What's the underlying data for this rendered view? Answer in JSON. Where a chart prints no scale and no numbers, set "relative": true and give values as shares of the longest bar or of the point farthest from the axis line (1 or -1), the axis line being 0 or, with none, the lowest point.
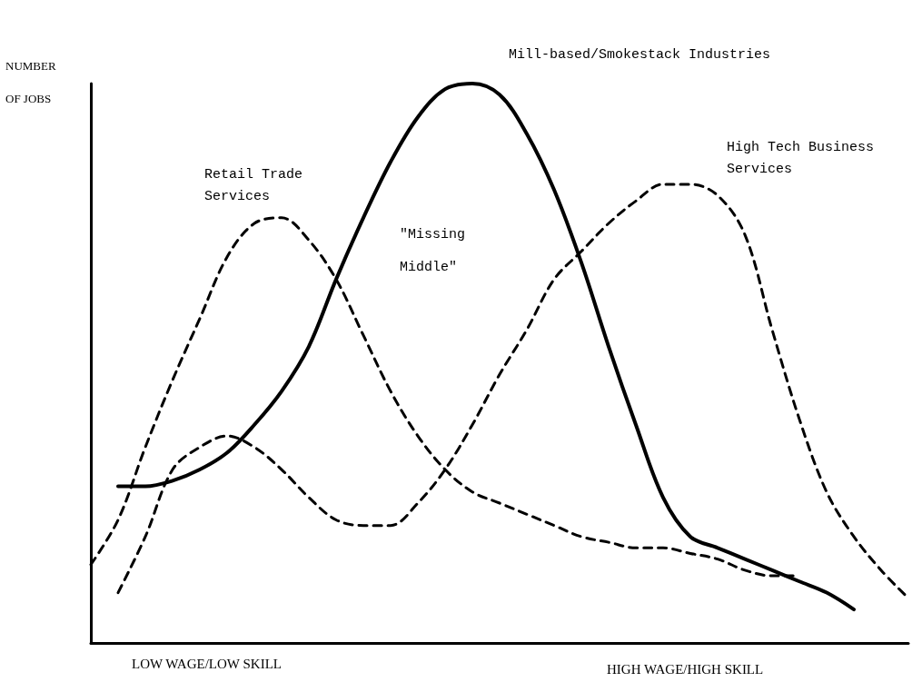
{
  "chart_data": {
    "type": "line",
    "relative": true,
    "ylabel": "NUMBER OF JOBS",
    "categories": [
      null,
      null,
      null,
      null,
      null,
      null,
      null,
      null,
      null,
      null,
      null,
      null,
      null,
      null,
      null,
      null,
      null,
      null,
      null,
      null,
      null,
      null,
      null,
      null,
      null,
      null,
      null,
      null,
      null,
      null,
      null
    ],
    "series": [
      {
        "name": "Retail Trade Services",
        "color": "#000000",
        "line_style": "dashed",
        "values": [
          0.14,
          0.22,
          0.35,
          0.47,
          0.58,
          0.69,
          0.75,
          0.76,
          0.72,
          0.65,
          0.55,
          0.45,
          0.37,
          0.31,
          0.27,
          0.25,
          0.23,
          0.21,
          0.19,
          0.18,
          0.17,
          0.17,
          0.16,
          0.15,
          0.13,
          0.12,
          0.12,
          null,
          null,
          null,
          null
        ]
      },
      {
        "name": "Mill-based/Smokestack Industries",
        "color": "#000000",
        "line_style": "solid",
        "values": [
          null,
          0.28,
          0.28,
          0.29,
          0.31,
          0.34,
          0.39,
          0.45,
          0.53,
          0.65,
          0.76,
          0.86,
          0.94,
          0.99,
          1.0,
          0.98,
          0.91,
          0.81,
          0.68,
          0.53,
          0.39,
          0.26,
          0.19,
          0.17,
          0.15,
          0.13,
          0.11,
          0.09,
          0.06,
          null,
          null
        ]
      },
      {
        "name": "High Tech Business Services",
        "color": "#000000",
        "line_style": "dashed",
        "values": [
          null,
          0.09,
          0.19,
          0.31,
          0.35,
          0.37,
          0.35,
          0.31,
          0.26,
          0.22,
          0.21,
          0.21,
          0.25,
          0.31,
          0.39,
          0.48,
          0.56,
          0.65,
          0.7,
          0.75,
          0.79,
          0.82,
          0.82,
          0.8,
          0.73,
          0.56,
          0.4,
          0.27,
          0.19,
          0.13,
          0.08
        ]
      }
    ],
    "annotations": [
      "\"Missing Middle\"",
      "LOW WAGE/LOW SKILL",
      "HIGH WAGE/HIGH SKILL"
    ],
    "marker": "none",
    "grid": false,
    "legend": false
  }
}
